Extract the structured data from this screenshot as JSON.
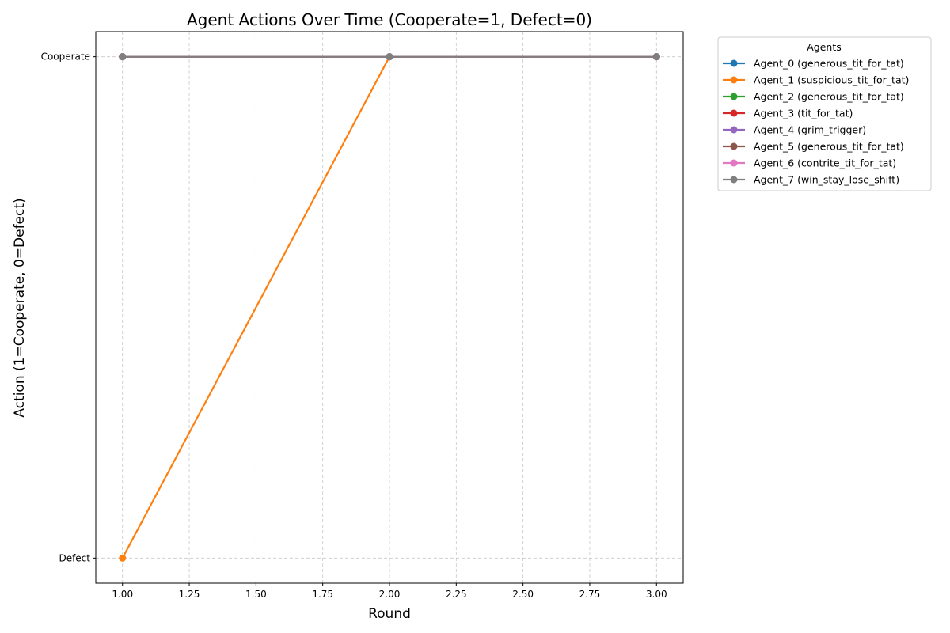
{
  "chart_data": {
    "type": "line",
    "title": "Agent Actions Over Time (Cooperate=1, Defect=0)",
    "xlabel": "Round",
    "ylabel": "Action (1=Cooperate, 0=Defect)",
    "x": [
      1,
      2,
      3
    ],
    "xlim": [
      0.9,
      3.1
    ],
    "ylim": [
      -0.05,
      1.05
    ],
    "x_ticks": [
      1.0,
      1.25,
      1.5,
      1.75,
      2.0,
      2.25,
      2.5,
      2.75,
      3.0
    ],
    "x_tick_labels": [
      "1.00",
      "1.25",
      "1.50",
      "1.75",
      "2.00",
      "2.25",
      "2.50",
      "2.75",
      "3.00"
    ],
    "y_ticks": [
      0,
      1
    ],
    "y_tick_labels": [
      "Defect",
      "Cooperate"
    ],
    "grid": true,
    "legend_title": "Agents",
    "legend_placement": "outside-top-right",
    "series": [
      {
        "name": "Agent_0 (generous_tit_for_tat)",
        "color": "#1f77b4",
        "values": [
          1,
          1,
          1
        ]
      },
      {
        "name": "Agent_1 (suspicious_tit_for_tat)",
        "color": "#ff7f0e",
        "values": [
          0,
          1,
          1
        ]
      },
      {
        "name": "Agent_2 (generous_tit_for_tat)",
        "color": "#2ca02c",
        "values": [
          1,
          1,
          1
        ]
      },
      {
        "name": "Agent_3 (tit_for_tat)",
        "color": "#d62728",
        "values": [
          1,
          1,
          1
        ]
      },
      {
        "name": "Agent_4 (grim_trigger)",
        "color": "#9467bd",
        "values": [
          1,
          1,
          1
        ]
      },
      {
        "name": "Agent_5 (generous_tit_for_tat)",
        "color": "#8c564b",
        "values": [
          1,
          1,
          1
        ]
      },
      {
        "name": "Agent_6 (contrite_tit_for_tat)",
        "color": "#e377c2",
        "values": [
          1,
          1,
          1
        ]
      },
      {
        "name": "Agent_7 (win_stay_lose_shift)",
        "color": "#7f7f7f",
        "values": [
          1,
          1,
          1
        ]
      }
    ]
  }
}
